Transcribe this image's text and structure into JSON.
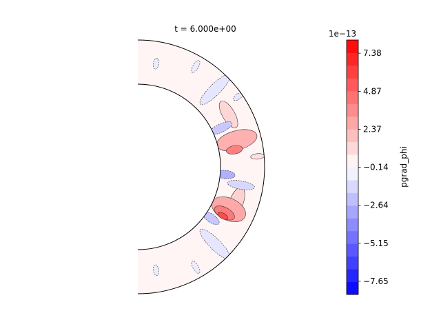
{
  "chart_data": {
    "type": "contourf",
    "title": "t = 6.000e+00",
    "geometry": "half-annulus (polar r-theta slice)",
    "colorbar": {
      "label": "pgrad_phi",
      "offset_text": "1e−13",
      "colormap": "bwr",
      "vmin": -8.52,
      "vmax": 8.25,
      "n_levels": 20,
      "ticks": [
        7.38,
        4.87,
        2.37,
        -0.14,
        -2.64,
        -5.15,
        -7.65
      ],
      "tick_labels": [
        "7.38",
        "4.87",
        "2.37",
        "−0.14",
        "−2.64",
        "−5.15",
        "−7.65"
      ]
    }
  }
}
